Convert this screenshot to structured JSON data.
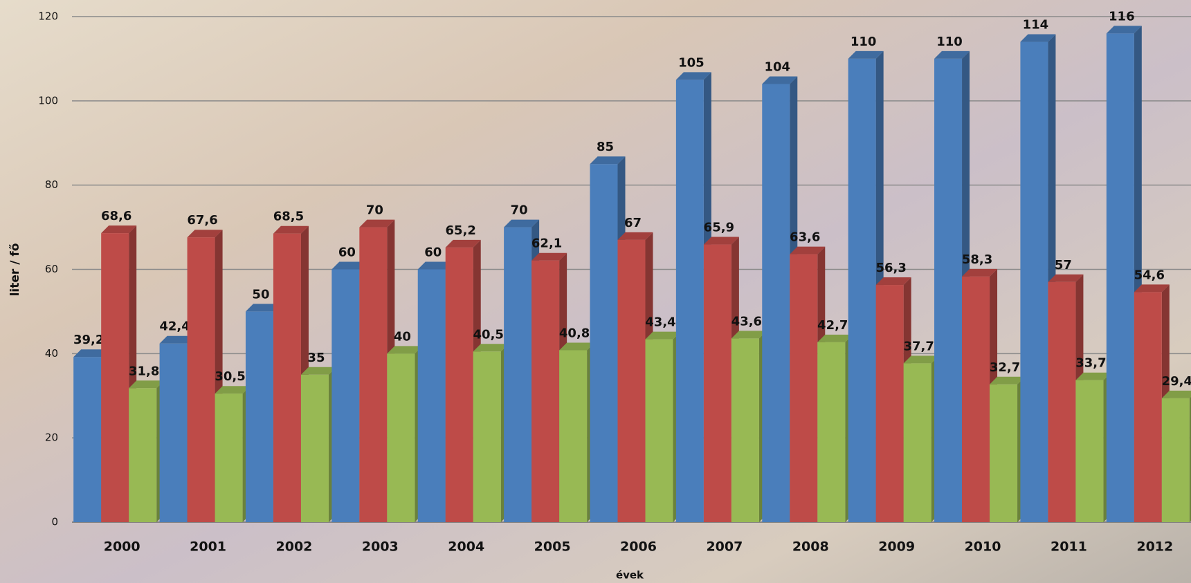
{
  "chart_data": {
    "type": "bar",
    "y_label": "liter / fő",
    "x_label": "évek",
    "categories": [
      "2000",
      "2001",
      "2002",
      "2003",
      "2004",
      "2005",
      "2006",
      "2007",
      "2008",
      "2009",
      "2010",
      "2011",
      "2012"
    ],
    "series": [
      {
        "color": "#4a7ebb",
        "values": [
          39.2,
          42.4,
          50,
          60,
          60,
          70,
          85,
          105,
          104,
          110,
          110,
          114,
          116
        ],
        "value_labels": [
          "39,2",
          "42,4",
          "50",
          "60",
          "60",
          "70",
          "85",
          "105",
          "104",
          "110",
          "110",
          "114",
          "116"
        ]
      },
      {
        "color": "#be4b48",
        "values": [
          68.6,
          67.6,
          68.5,
          70,
          65.2,
          62.1,
          67,
          65.9,
          63.6,
          56.3,
          58.3,
          57,
          54.6
        ],
        "value_labels": [
          "68,6",
          "67,6",
          "68,5",
          "70",
          "65,2",
          "62,1",
          "67",
          "65,9",
          "63,6",
          "56,3",
          "58,3",
          "57",
          "54,6"
        ]
      },
      {
        "color": "#98b954",
        "values": [
          31.8,
          30.5,
          35,
          40,
          40.5,
          40.8,
          43.4,
          43.6,
          42.7,
          37.7,
          32.7,
          33.7,
          29.4
        ],
        "value_labels": [
          "31,8",
          "30,5",
          "35",
          "40",
          "40,5",
          "40,8",
          "43,4",
          "43,6",
          "42,7",
          "37,7",
          "32,7",
          "33,7",
          "29,4"
        ]
      }
    ],
    "ylim": [
      0,
      120
    ],
    "yticks": [
      0,
      20,
      40,
      60,
      80,
      100,
      120
    ],
    "grid": true
  }
}
